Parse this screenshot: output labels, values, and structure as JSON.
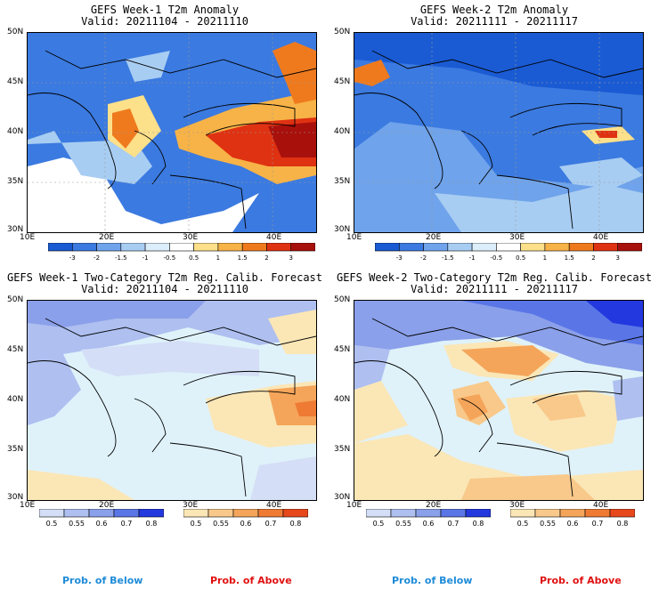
{
  "panels": [
    {
      "title": "GEFS Week-1 T2m Anomaly",
      "valid": "Valid: 20211104 - 20211110"
    },
    {
      "title": "GEFS Week-2 T2m Anomaly",
      "valid": "Valid: 20211111 - 20211117"
    },
    {
      "title": "GEFS Week-1 Two-Category T2m Reg. Calib. Forecast",
      "valid": "Valid: 20211104 - 20211110"
    },
    {
      "title": "GEFS Week-2 Two-Category T2m Reg. Calib. Forecast",
      "valid": "Valid: 20211111 - 20211117"
    }
  ],
  "axes": {
    "lat_labels": [
      "50N",
      "45N",
      "40N",
      "35N",
      "30N"
    ],
    "lon_labels": [
      "10E",
      "20E",
      "30E",
      "40E"
    ]
  },
  "anomaly_colorbar": {
    "ticks": [
      "-3",
      "-2",
      "-1.5",
      "-1",
      "-0.5",
      "0.5",
      "1",
      "1.5",
      "2",
      "3"
    ],
    "colors": [
      "#1a5bd4",
      "#3b7ae0",
      "#6fa3eb",
      "#a8cdf2",
      "#dbeefa",
      "#ffffff",
      "#fce08a",
      "#f7b347",
      "#ef7a1e",
      "#df3212",
      "#a8100c"
    ]
  },
  "below_colorbar": {
    "ticks": [
      "0.5",
      "0.55",
      "0.6",
      "0.7",
      "0.8"
    ],
    "colors": [
      "#d4def6",
      "#aebff0",
      "#8ba0ea",
      "#5a76e6",
      "#2338df"
    ]
  },
  "above_colorbar": {
    "ticks": [
      "0.5",
      "0.55",
      "0.6",
      "0.7",
      "0.8"
    ],
    "colors": [
      "#fbe6b6",
      "#f8c98a",
      "#f4a55a",
      "#ef7a34",
      "#e7481b"
    ]
  },
  "footer": {
    "below": "Prob. of Below",
    "above": "Prob. of Above",
    "below_color": "#1e8bd8",
    "above_color": "#e01010"
  },
  "colors": {
    "sea_two_category": "#dff2fa",
    "near_normal": "#ffffff"
  }
}
